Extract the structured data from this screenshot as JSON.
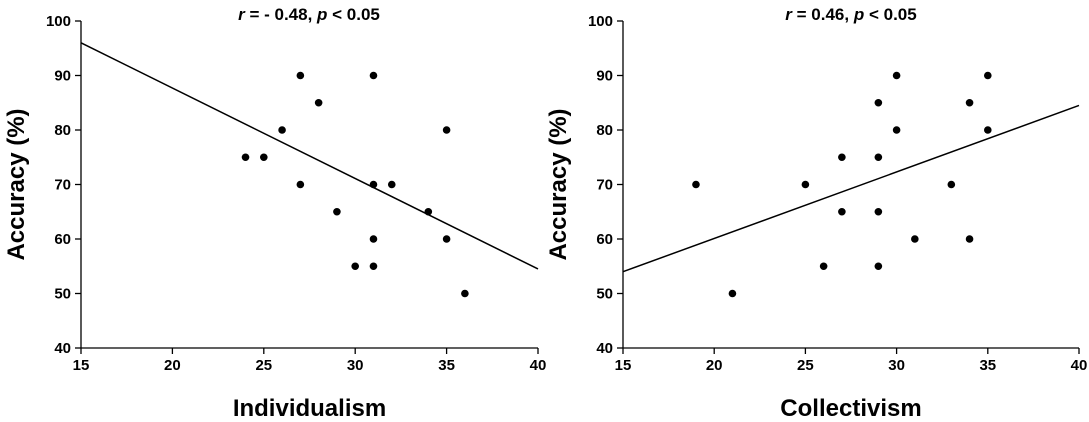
{
  "chart_data": [
    {
      "type": "scatter",
      "annotation": {
        "r_symbol": "r",
        "r_text": " = - 0.48, ",
        "p_symbol": "p",
        "p_text": " < 0.05"
      },
      "xlabel": "Individualism",
      "ylabel": "Accuracy (%)",
      "xlim": [
        15,
        40
      ],
      "ylim": [
        40,
        100
      ],
      "xticks": [
        15,
        20,
        25,
        30,
        35,
        40
      ],
      "yticks": [
        40,
        50,
        60,
        70,
        80,
        90,
        100
      ],
      "grid": false,
      "points": [
        {
          "x": 24,
          "y": 75
        },
        {
          "x": 25,
          "y": 75
        },
        {
          "x": 26,
          "y": 80
        },
        {
          "x": 27,
          "y": 90
        },
        {
          "x": 27,
          "y": 70
        },
        {
          "x": 28,
          "y": 85
        },
        {
          "x": 29,
          "y": 65
        },
        {
          "x": 30,
          "y": 55
        },
        {
          "x": 31,
          "y": 90
        },
        {
          "x": 31,
          "y": 70
        },
        {
          "x": 31,
          "y": 60
        },
        {
          "x": 31,
          "y": 55
        },
        {
          "x": 32,
          "y": 70
        },
        {
          "x": 34,
          "y": 65
        },
        {
          "x": 35,
          "y": 80
        },
        {
          "x": 35,
          "y": 60
        },
        {
          "x": 36,
          "y": 50
        }
      ],
      "trendline": {
        "x": [
          15,
          40
        ],
        "y": [
          96,
          54.5
        ]
      },
      "colors": {
        "point": "#000000",
        "line": "#000000"
      }
    },
    {
      "type": "scatter",
      "annotation": {
        "r_symbol": "r",
        "r_text": " = 0.46, ",
        "p_symbol": "p",
        "p_text": " < 0.05"
      },
      "xlabel": "Collectivism",
      "ylabel": "Accuracy (%)",
      "xlim": [
        15,
        40
      ],
      "ylim": [
        40,
        100
      ],
      "xticks": [
        15,
        20,
        25,
        30,
        35,
        40
      ],
      "yticks": [
        40,
        50,
        60,
        70,
        80,
        90,
        100
      ],
      "grid": false,
      "points": [
        {
          "x": 19,
          "y": 70
        },
        {
          "x": 21,
          "y": 50
        },
        {
          "x": 25,
          "y": 70
        },
        {
          "x": 26,
          "y": 55
        },
        {
          "x": 27,
          "y": 75
        },
        {
          "x": 27,
          "y": 65
        },
        {
          "x": 29,
          "y": 85
        },
        {
          "x": 29,
          "y": 75
        },
        {
          "x": 29,
          "y": 65
        },
        {
          "x": 29,
          "y": 55
        },
        {
          "x": 30,
          "y": 90
        },
        {
          "x": 30,
          "y": 80
        },
        {
          "x": 31,
          "y": 60
        },
        {
          "x": 33,
          "y": 70
        },
        {
          "x": 34,
          "y": 85
        },
        {
          "x": 34,
          "y": 60
        },
        {
          "x": 35,
          "y": 90
        },
        {
          "x": 35,
          "y": 80
        }
      ],
      "trendline": {
        "x": [
          15,
          40
        ],
        "y": [
          54,
          84.5
        ]
      },
      "colors": {
        "point": "#000000",
        "line": "#000000"
      }
    }
  ]
}
